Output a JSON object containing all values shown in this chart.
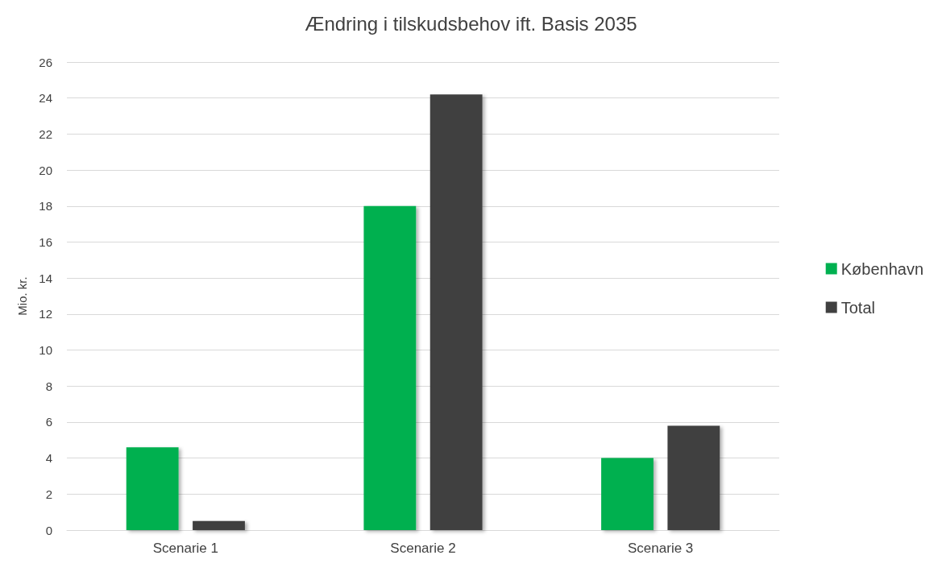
{
  "chart_data": {
    "type": "bar",
    "title": "Ændring i tilskudsbehov ift. Basis 2035",
    "ylabel": "Mio. kr.",
    "categories": [
      "Scenarie 1",
      "Scenarie 2",
      "Scenarie 3"
    ],
    "series": [
      {
        "name": "København",
        "color": "#00b050",
        "values": [
          4.6,
          18,
          4
        ]
      },
      {
        "name": "Total",
        "color": "#404040",
        "values": [
          0.5,
          24.2,
          5.8
        ]
      }
    ],
    "ylim": [
      0,
      26
    ],
    "yticks": [
      0,
      2,
      4,
      6,
      8,
      10,
      12,
      14,
      16,
      18,
      20,
      22,
      24,
      26
    ],
    "grid": "y",
    "legend": "right"
  }
}
